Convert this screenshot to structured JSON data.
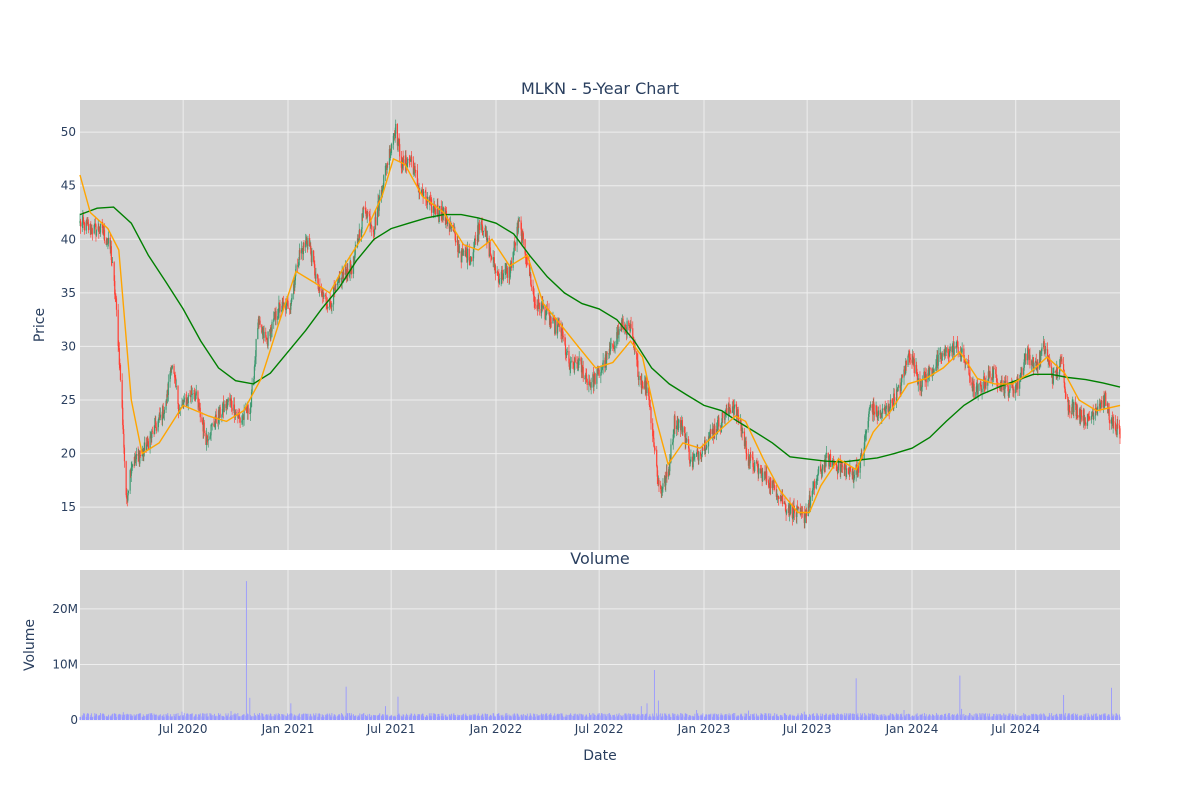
{
  "chart_data": {
    "type": "candlestick",
    "title": "MLKN - 5-Year Chart",
    "grid": true,
    "colors": {
      "plot_bg": "#d3d3d3",
      "grid": "#eeeeee",
      "increasing": "#3d9970",
      "decreasing": "#ff4136",
      "ma_short": "#ffa500",
      "ma_long": "#008000",
      "volume": "#9999ff"
    },
    "price_panel": {
      "ylabel": "Price",
      "ylim": [
        11,
        53
      ],
      "yticks": [
        15,
        20,
        25,
        30,
        35,
        40,
        45,
        50
      ],
      "ytick_labels": [
        "15",
        "20",
        "25",
        "30",
        "35",
        "40",
        "45",
        "50"
      ]
    },
    "volume_panel": {
      "title": "Volume",
      "ylabel": "Volume",
      "ylim": [
        0,
        27000000
      ],
      "yticks": [
        0,
        10000000,
        20000000
      ],
      "ytick_labels": [
        "0",
        "10M",
        "20M"
      ]
    },
    "x_axis": {
      "xlabel": "Date",
      "range": [
        "2020-01-02",
        "2024-12-31"
      ],
      "ticks": [
        "2020-07-01",
        "2021-01-01",
        "2021-07-01",
        "2022-01-01",
        "2022-07-01",
        "2023-01-01",
        "2023-07-01",
        "2024-01-01",
        "2024-07-01"
      ],
      "tick_labels": [
        "Jul 2020",
        "Jan 2021",
        "Jul 2021",
        "Jan 2022",
        "Jul 2022",
        "Jan 2023",
        "Jul 2023",
        "Jan 2024",
        "Jul 2024"
      ]
    },
    "price_path": [
      [
        "2020-01-02",
        41.5
      ],
      [
        "2020-01-20",
        41.0
      ],
      [
        "2020-02-10",
        40.8
      ],
      [
        "2020-02-25",
        39.0
      ],
      [
        "2020-03-05",
        34.0
      ],
      [
        "2020-03-12",
        28.0
      ],
      [
        "2020-03-18",
        22.0
      ],
      [
        "2020-03-23",
        15.5
      ],
      [
        "2020-04-01",
        19.0
      ],
      [
        "2020-04-20",
        20.0
      ],
      [
        "2020-05-10",
        22.0
      ],
      [
        "2020-06-01",
        24.5
      ],
      [
        "2020-06-10",
        28.5
      ],
      [
        "2020-06-25",
        24.0
      ],
      [
        "2020-07-20",
        26.0
      ],
      [
        "2020-08-10",
        21.5
      ],
      [
        "2020-09-01",
        23.5
      ],
      [
        "2020-09-20",
        25.0
      ],
      [
        "2020-10-10",
        23.0
      ],
      [
        "2020-10-28",
        24.5
      ],
      [
        "2020-11-09",
        32.0
      ],
      [
        "2020-11-25",
        30.5
      ],
      [
        "2020-12-15",
        33.5
      ],
      [
        "2021-01-05",
        34.0
      ],
      [
        "2021-01-20",
        38.5
      ],
      [
        "2021-02-05",
        40.0
      ],
      [
        "2021-02-25",
        35.0
      ],
      [
        "2021-03-15",
        34.0
      ],
      [
        "2021-04-05",
        36.5
      ],
      [
        "2021-04-25",
        37.5
      ],
      [
        "2021-05-15",
        43.0
      ],
      [
        "2021-06-01",
        41.0
      ],
      [
        "2021-06-15",
        45.0
      ],
      [
        "2021-06-30",
        48.5
      ],
      [
        "2021-07-08",
        50.5
      ],
      [
        "2021-07-20",
        47.0
      ],
      [
        "2021-08-05",
        47.5
      ],
      [
        "2021-08-20",
        44.5
      ],
      [
        "2021-09-10",
        43.0
      ],
      [
        "2021-09-30",
        42.5
      ],
      [
        "2021-10-15",
        41.0
      ],
      [
        "2021-11-01",
        38.5
      ],
      [
        "2021-11-20",
        38.5
      ],
      [
        "2021-12-05",
        42.0
      ],
      [
        "2021-12-20",
        39.0
      ],
      [
        "2022-01-05",
        36.5
      ],
      [
        "2022-01-25",
        37.0
      ],
      [
        "2022-02-10",
        41.5
      ],
      [
        "2022-02-25",
        38.0
      ],
      [
        "2022-03-10",
        34.0
      ],
      [
        "2022-03-25",
        33.5
      ],
      [
        "2022-04-10",
        32.0
      ],
      [
        "2022-04-25",
        31.5
      ],
      [
        "2022-05-10",
        28.0
      ],
      [
        "2022-05-25",
        28.5
      ],
      [
        "2022-06-15",
        26.5
      ],
      [
        "2022-07-01",
        27.5
      ],
      [
        "2022-07-20",
        29.5
      ],
      [
        "2022-08-10",
        32.0
      ],
      [
        "2022-08-25",
        31.5
      ],
      [
        "2022-09-10",
        27.0
      ],
      [
        "2022-09-25",
        26.0
      ],
      [
        "2022-10-05",
        21.0
      ],
      [
        "2022-10-15",
        16.5
      ],
      [
        "2022-10-30",
        18.0
      ],
      [
        "2022-11-10",
        23.0
      ],
      [
        "2022-11-25",
        22.5
      ],
      [
        "2022-12-10",
        19.0
      ],
      [
        "2022-12-28",
        20.5
      ],
      [
        "2023-01-15",
        22.0
      ],
      [
        "2023-02-05",
        23.5
      ],
      [
        "2023-02-20",
        24.5
      ],
      [
        "2023-03-05",
        23.0
      ],
      [
        "2023-03-20",
        19.5
      ],
      [
        "2023-04-05",
        18.5
      ],
      [
        "2023-04-25",
        17.5
      ],
      [
        "2023-05-10",
        16.5
      ],
      [
        "2023-05-25",
        15.0
      ],
      [
        "2023-06-10",
        14.5
      ],
      [
        "2023-06-25",
        14.0
      ],
      [
        "2023-07-05",
        15.5
      ],
      [
        "2023-07-20",
        18.0
      ],
      [
        "2023-08-05",
        19.5
      ],
      [
        "2023-08-20",
        19.0
      ],
      [
        "2023-09-05",
        18.5
      ],
      [
        "2023-09-20",
        18.0
      ],
      [
        "2023-10-05",
        19.5
      ],
      [
        "2023-10-20",
        24.5
      ],
      [
        "2023-11-05",
        23.5
      ],
      [
        "2023-11-25",
        24.5
      ],
      [
        "2023-12-10",
        26.0
      ],
      [
        "2023-12-28",
        29.5
      ],
      [
        "2024-01-15",
        26.5
      ],
      [
        "2024-01-30",
        27.5
      ],
      [
        "2024-02-15",
        28.5
      ],
      [
        "2024-03-01",
        29.5
      ],
      [
        "2024-03-20",
        30.0
      ],
      [
        "2024-04-05",
        28.5
      ],
      [
        "2024-04-20",
        25.5
      ],
      [
        "2024-05-05",
        26.5
      ],
      [
        "2024-05-20",
        27.5
      ],
      [
        "2024-06-05",
        26.5
      ],
      [
        "2024-06-20",
        26.0
      ],
      [
        "2024-07-05",
        26.5
      ],
      [
        "2024-07-20",
        29.5
      ],
      [
        "2024-08-05",
        28.0
      ],
      [
        "2024-08-20",
        30.0
      ],
      [
        "2024-09-05",
        27.0
      ],
      [
        "2024-09-20",
        28.5
      ],
      [
        "2024-10-01",
        24.5
      ],
      [
        "2024-10-20",
        24.0
      ],
      [
        "2024-11-05",
        23.0
      ],
      [
        "2024-11-20",
        24.5
      ],
      [
        "2024-12-05",
        25.0
      ],
      [
        "2024-12-18",
        22.5
      ],
      [
        "2024-12-31",
        22.0
      ]
    ],
    "ma_short": [
      [
        "2020-01-02",
        46.0
      ],
      [
        "2020-01-20",
        42.5
      ],
      [
        "2020-02-20",
        41.0
      ],
      [
        "2020-03-10",
        39.0
      ],
      [
        "2020-04-01",
        25.0
      ],
      [
        "2020-04-20",
        20.0
      ],
      [
        "2020-05-20",
        21.0
      ],
      [
        "2020-07-01",
        24.5
      ],
      [
        "2020-08-15",
        23.5
      ],
      [
        "2020-09-15",
        23.0
      ],
      [
        "2020-10-15",
        24.0
      ],
      [
        "2020-11-15",
        27.0
      ],
      [
        "2020-12-15",
        32.0
      ],
      [
        "2021-01-15",
        37.0
      ],
      [
        "2021-02-15",
        36.0
      ],
      [
        "2021-03-15",
        35.0
      ],
      [
        "2021-04-15",
        38.0
      ],
      [
        "2021-05-15",
        40.5
      ],
      [
        "2021-06-15",
        44.0
      ],
      [
        "2021-07-05",
        47.5
      ],
      [
        "2021-07-25",
        47.0
      ],
      [
        "2021-08-25",
        44.0
      ],
      [
        "2021-10-01",
        42.5
      ],
      [
        "2021-11-05",
        39.5
      ],
      [
        "2021-12-01",
        39.0
      ],
      [
        "2021-12-25",
        40.0
      ],
      [
        "2022-01-25",
        37.5
      ],
      [
        "2022-02-25",
        38.5
      ],
      [
        "2022-03-25",
        34.0
      ],
      [
        "2022-04-25",
        32.0
      ],
      [
        "2022-05-25",
        30.0
      ],
      [
        "2022-06-25",
        28.0
      ],
      [
        "2022-07-25",
        28.5
      ],
      [
        "2022-08-25",
        30.5
      ],
      [
        "2022-09-15",
        29.0
      ],
      [
        "2022-10-10",
        23.0
      ],
      [
        "2022-10-30",
        19.0
      ],
      [
        "2022-11-25",
        21.0
      ],
      [
        "2022-12-25",
        20.5
      ],
      [
        "2023-01-25",
        22.0
      ],
      [
        "2023-02-25",
        23.5
      ],
      [
        "2023-03-15",
        23.0
      ],
      [
        "2023-04-15",
        19.5
      ],
      [
        "2023-05-15",
        16.5
      ],
      [
        "2023-06-15",
        14.5
      ],
      [
        "2023-07-05",
        14.5
      ],
      [
        "2023-07-25",
        17.0
      ],
      [
        "2023-08-25",
        19.5
      ],
      [
        "2023-09-25",
        18.5
      ],
      [
        "2023-10-25",
        22.0
      ],
      [
        "2023-11-25",
        24.0
      ],
      [
        "2023-12-25",
        26.5
      ],
      [
        "2024-01-25",
        27.0
      ],
      [
        "2024-02-25",
        28.0
      ],
      [
        "2024-03-25",
        29.5
      ],
      [
        "2024-04-25",
        27.0
      ],
      [
        "2024-05-25",
        26.5
      ],
      [
        "2024-06-25",
        26.5
      ],
      [
        "2024-07-25",
        27.5
      ],
      [
        "2024-08-25",
        29.0
      ],
      [
        "2024-09-25",
        27.5
      ],
      [
        "2024-10-20",
        25.0
      ],
      [
        "2024-11-20",
        24.0
      ],
      [
        "2024-12-31",
        24.5
      ]
    ],
    "ma_long": [
      [
        "2020-01-02",
        42.3
      ],
      [
        "2020-02-01",
        42.9
      ],
      [
        "2020-03-01",
        43.0
      ],
      [
        "2020-04-01",
        41.5
      ],
      [
        "2020-05-01",
        38.5
      ],
      [
        "2020-06-01",
        36.0
      ],
      [
        "2020-07-01",
        33.5
      ],
      [
        "2020-08-01",
        30.5
      ],
      [
        "2020-09-01",
        28.0
      ],
      [
        "2020-10-01",
        26.8
      ],
      [
        "2020-11-01",
        26.5
      ],
      [
        "2020-12-01",
        27.5
      ],
      [
        "2021-01-01",
        29.5
      ],
      [
        "2021-02-01",
        31.5
      ],
      [
        "2021-03-01",
        33.5
      ],
      [
        "2021-04-01",
        35.5
      ],
      [
        "2021-05-01",
        38.0
      ],
      [
        "2021-06-01",
        40.0
      ],
      [
        "2021-07-01",
        41.0
      ],
      [
        "2021-08-01",
        41.5
      ],
      [
        "2021-09-01",
        42.0
      ],
      [
        "2021-10-01",
        42.3
      ],
      [
        "2021-11-01",
        42.3
      ],
      [
        "2021-12-01",
        42.0
      ],
      [
        "2022-01-01",
        41.5
      ],
      [
        "2022-02-01",
        40.5
      ],
      [
        "2022-03-01",
        38.5
      ],
      [
        "2022-04-01",
        36.5
      ],
      [
        "2022-05-01",
        35.0
      ],
      [
        "2022-06-01",
        34.0
      ],
      [
        "2022-07-01",
        33.5
      ],
      [
        "2022-08-01",
        32.5
      ],
      [
        "2022-09-01",
        30.5
      ],
      [
        "2022-10-01",
        28.0
      ],
      [
        "2022-11-01",
        26.5
      ],
      [
        "2022-12-01",
        25.5
      ],
      [
        "2023-01-01",
        24.5
      ],
      [
        "2023-02-01",
        24.0
      ],
      [
        "2023-03-01",
        23.0
      ],
      [
        "2023-04-01",
        22.0
      ],
      [
        "2023-05-01",
        21.0
      ],
      [
        "2023-06-01",
        19.7
      ],
      [
        "2023-07-01",
        19.5
      ],
      [
        "2023-08-01",
        19.3
      ],
      [
        "2023-09-01",
        19.2
      ],
      [
        "2023-10-01",
        19.4
      ],
      [
        "2023-11-01",
        19.6
      ],
      [
        "2023-12-01",
        20.0
      ],
      [
        "2024-01-01",
        20.5
      ],
      [
        "2024-02-01",
        21.5
      ],
      [
        "2024-03-01",
        23.0
      ],
      [
        "2024-04-01",
        24.5
      ],
      [
        "2024-05-01",
        25.5
      ],
      [
        "2024-06-01",
        26.2
      ],
      [
        "2024-07-01",
        26.8
      ],
      [
        "2024-08-01",
        27.4
      ],
      [
        "2024-09-01",
        27.4
      ],
      [
        "2024-10-01",
        27.1
      ],
      [
        "2024-11-01",
        26.9
      ],
      [
        "2024-12-01",
        26.6
      ],
      [
        "2024-12-31",
        26.2
      ]
    ],
    "volume_base": 900000,
    "volume_spikes": [
      [
        "2020-03-20",
        1400000
      ],
      [
        "2020-06-30",
        1500000
      ],
      [
        "2020-09-25",
        1600000
      ],
      [
        "2020-10-22",
        25000000
      ],
      [
        "2020-10-26",
        4000000
      ],
      [
        "2021-01-08",
        3000000
      ],
      [
        "2021-04-15",
        6000000
      ],
      [
        "2021-06-22",
        2500000
      ],
      [
        "2021-07-15",
        4200000
      ],
      [
        "2022-09-15",
        2500000
      ],
      [
        "2022-09-25",
        3000000
      ],
      [
        "2022-10-08",
        9000000
      ],
      [
        "2022-10-15",
        3500000
      ],
      [
        "2022-12-20",
        1800000
      ],
      [
        "2023-03-20",
        1700000
      ],
      [
        "2023-06-28",
        1500000
      ],
      [
        "2023-09-26",
        7500000
      ],
      [
        "2023-12-20",
        1800000
      ],
      [
        "2024-03-27",
        8000000
      ],
      [
        "2024-03-30",
        2000000
      ],
      [
        "2024-09-25",
        4500000
      ],
      [
        "2024-12-18",
        5800000
      ]
    ]
  }
}
